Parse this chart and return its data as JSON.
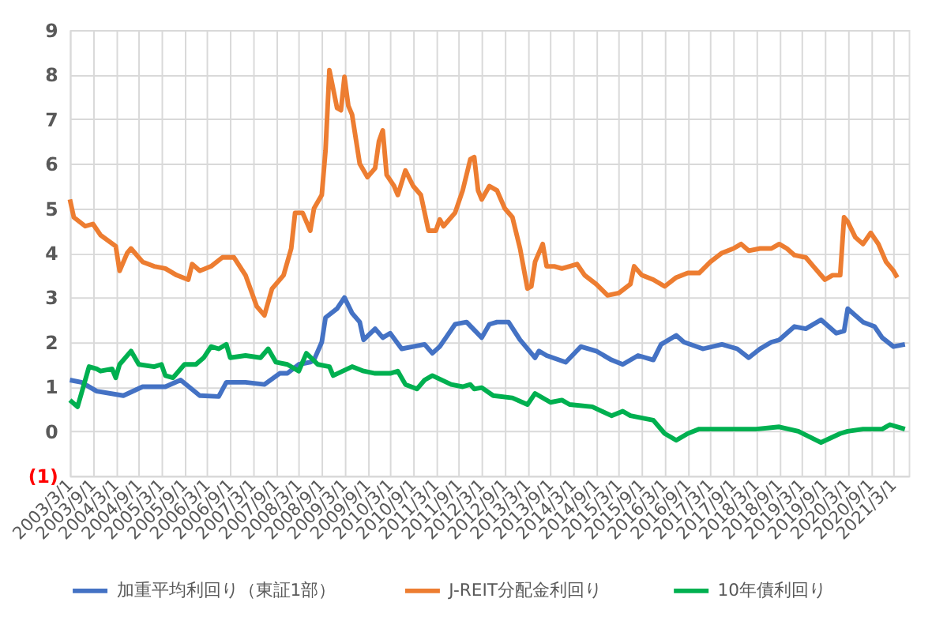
{
  "chart_data": {
    "type": "line",
    "legend": "bottom",
    "grid": true,
    "line_style": "solid",
    "marker": "none",
    "xlim": [
      "2003-03-01",
      "2021-07-01"
    ],
    "xticks": [
      {
        "value": "2003-03-01",
        "label": "2003/3/1"
      },
      {
        "value": "2003-09-01",
        "label": "2003/9/1"
      },
      {
        "value": "2004-03-01",
        "label": "2004/3/1"
      },
      {
        "value": "2004-09-01",
        "label": "2004/9/1"
      },
      {
        "value": "2005-03-01",
        "label": "2005/3/1"
      },
      {
        "value": "2005-09-01",
        "label": "2005/9/1"
      },
      {
        "value": "2006-03-01",
        "label": "2006/3/1"
      },
      {
        "value": "2006-09-01",
        "label": "2006/9/1"
      },
      {
        "value": "2007-03-01",
        "label": "2007/3/1"
      },
      {
        "value": "2007-09-01",
        "label": "2007/9/1"
      },
      {
        "value": "2008-03-01",
        "label": "2008/3/1"
      },
      {
        "value": "2008-09-01",
        "label": "2008/9/1"
      },
      {
        "value": "2009-03-01",
        "label": "2009/3/1"
      },
      {
        "value": "2009-09-01",
        "label": "2009/9/1"
      },
      {
        "value": "2010-03-01",
        "label": "2010/3/1"
      },
      {
        "value": "2010-09-01",
        "label": "2010/9/1"
      },
      {
        "value": "2011-03-01",
        "label": "2011/3/1"
      },
      {
        "value": "2011-09-01",
        "label": "2011/9/1"
      },
      {
        "value": "2012-03-01",
        "label": "2012/3/1"
      },
      {
        "value": "2012-09-01",
        "label": "2012/9/1"
      },
      {
        "value": "2013-03-01",
        "label": "2013/3/1"
      },
      {
        "value": "2013-09-01",
        "label": "2013/9/1"
      },
      {
        "value": "2014-03-01",
        "label": "2014/3/1"
      },
      {
        "value": "2014-09-01",
        "label": "2014/9/1"
      },
      {
        "value": "2015-03-01",
        "label": "2015/3/1"
      },
      {
        "value": "2015-09-01",
        "label": "2015/9/1"
      },
      {
        "value": "2016-03-01",
        "label": "2016/3/1"
      },
      {
        "value": "2016-09-01",
        "label": "2016/9/1"
      },
      {
        "value": "2017-03-01",
        "label": "2017/3/1"
      },
      {
        "value": "2017-09-01",
        "label": "2017/9/1"
      },
      {
        "value": "2018-03-01",
        "label": "2018/3/1"
      },
      {
        "value": "2018-09-01",
        "label": "2018/9/1"
      },
      {
        "value": "2019-03-01",
        "label": "2019/3/1"
      },
      {
        "value": "2019-09-01",
        "label": "2019/9/1"
      },
      {
        "value": "2020-03-01",
        "label": "2020/3/1"
      },
      {
        "value": "2020-09-01",
        "label": "2020/9/1"
      },
      {
        "value": "2021-03-01",
        "label": "2021/3/1"
      }
    ],
    "ylim": [
      -1,
      9
    ],
    "yticks": [
      {
        "value": -1,
        "label": "(1)"
      },
      0,
      1,
      2,
      3,
      4,
      5,
      6,
      7,
      8,
      9
    ],
    "series": [
      {
        "name": "加重平均利回り（東証1部）",
        "color": "#4472c4",
        "x": [
          "2003-03",
          "2003-06",
          "2003-10",
          "2004-05",
          "2004-10",
          "2005-04",
          "2005-08",
          "2006-01",
          "2006-06",
          "2006-08",
          "2007-01",
          "2007-06",
          "2007-10",
          "2007-12",
          "2008-03",
          "2008-06",
          "2008-07",
          "2008-09",
          "2008-10",
          "2009-01",
          "2009-03",
          "2009-05",
          "2009-07",
          "2009-08",
          "2009-11",
          "2010-01",
          "2010-03",
          "2010-06",
          "2010-09",
          "2010-12",
          "2011-02",
          "2011-04",
          "2011-06",
          "2011-08",
          "2011-11",
          "2012-03",
          "2012-05",
          "2012-07",
          "2012-10",
          "2013-01",
          "2013-05",
          "2013-06",
          "2013-08",
          "2014-01",
          "2014-05",
          "2014-09",
          "2015-01",
          "2015-04",
          "2015-08",
          "2015-12",
          "2016-02",
          "2016-06",
          "2016-08",
          "2017-01",
          "2017-06",
          "2017-10",
          "2018-01",
          "2018-04",
          "2018-07",
          "2018-09",
          "2019-01",
          "2019-04",
          "2019-08",
          "2019-12",
          "2020-02",
          "2020-03",
          "2020-07",
          "2020-10",
          "2020-12",
          "2021-03",
          "2021-06"
        ],
        "values": [
          1.15,
          1.1,
          0.9,
          0.8,
          1.0,
          1.0,
          1.15,
          0.8,
          0.78,
          1.1,
          1.1,
          1.05,
          1.3,
          1.3,
          1.5,
          1.55,
          1.6,
          2.0,
          2.55,
          2.75,
          3.0,
          2.65,
          2.45,
          2.05,
          2.3,
          2.1,
          2.2,
          1.85,
          1.9,
          1.95,
          1.75,
          1.9,
          2.15,
          2.4,
          2.45,
          2.1,
          2.4,
          2.45,
          2.45,
          2.05,
          1.65,
          1.8,
          1.7,
          1.55,
          1.9,
          1.8,
          1.6,
          1.5,
          1.7,
          1.6,
          1.95,
          2.15,
          2.0,
          1.85,
          1.95,
          1.85,
          1.65,
          1.85,
          2.0,
          2.05,
          2.35,
          2.3,
          2.5,
          2.2,
          2.25,
          2.75,
          2.45,
          2.35,
          2.1,
          1.9,
          1.95
        ]
      },
      {
        "name": "J-REIT分配金利回り",
        "color": "#ed7d31",
        "x": [
          "2003-03",
          "2003-04",
          "2003-07",
          "2003-09",
          "2003-11",
          "2004-03",
          "2004-04",
          "2004-06",
          "2004-07",
          "2004-10",
          "2005-01",
          "2005-04",
          "2005-07",
          "2005-10",
          "2005-11",
          "2006-01",
          "2006-04",
          "2006-07",
          "2006-10",
          "2007-01",
          "2007-04",
          "2007-06",
          "2007-08",
          "2007-11",
          "2008-01",
          "2008-02",
          "2008-04",
          "2008-06",
          "2008-07",
          "2008-09",
          "2008-10",
          "2008-11",
          "2009-01",
          "2009-02",
          "2009-03",
          "2009-04",
          "2009-05",
          "2009-07",
          "2009-09",
          "2009-11",
          "2009-12",
          "2010-01",
          "2010-02",
          "2010-04",
          "2010-05",
          "2010-07",
          "2010-09",
          "2010-11",
          "2011-01",
          "2011-03",
          "2011-04",
          "2011-05",
          "2011-08",
          "2011-10",
          "2011-12",
          "2012-01",
          "2012-02",
          "2012-03",
          "2012-05",
          "2012-07",
          "2012-09",
          "2012-11",
          "2013-01",
          "2013-03",
          "2013-04",
          "2013-05",
          "2013-07",
          "2013-08",
          "2013-10",
          "2013-12",
          "2014-02",
          "2014-04",
          "2014-06",
          "2014-09",
          "2014-12",
          "2015-03",
          "2015-06",
          "2015-07",
          "2015-09",
          "2015-12",
          "2016-03",
          "2016-06",
          "2016-09",
          "2016-12",
          "2017-03",
          "2017-06",
          "2017-09",
          "2017-11",
          "2018-01",
          "2018-04",
          "2018-07",
          "2018-09",
          "2018-11",
          "2019-01",
          "2019-04",
          "2019-06",
          "2019-09",
          "2019-11",
          "2020-01",
          "2020-02",
          "2020-03",
          "2020-05",
          "2020-07",
          "2020-09",
          "2020-11",
          "2021-01",
          "2021-03",
          "2021-04"
        ],
        "values": [
          5.2,
          4.8,
          4.6,
          4.65,
          4.4,
          4.15,
          3.6,
          4.0,
          4.1,
          3.8,
          3.7,
          3.65,
          3.5,
          3.4,
          3.75,
          3.6,
          3.7,
          3.9,
          3.9,
          3.5,
          2.8,
          2.6,
          3.2,
          3.5,
          4.1,
          4.9,
          4.9,
          4.5,
          5.0,
          5.3,
          6.3,
          8.1,
          7.25,
          7.2,
          7.95,
          7.3,
          7.1,
          6.0,
          5.7,
          5.9,
          6.5,
          6.75,
          5.75,
          5.5,
          5.3,
          5.85,
          5.5,
          5.3,
          4.5,
          4.5,
          4.75,
          4.6,
          4.9,
          5.4,
          6.1,
          6.15,
          5.4,
          5.2,
          5.5,
          5.4,
          5.0,
          4.8,
          4.1,
          3.2,
          3.25,
          3.8,
          4.2,
          3.7,
          3.7,
          3.65,
          3.7,
          3.75,
          3.5,
          3.3,
          3.05,
          3.1,
          3.3,
          3.7,
          3.5,
          3.4,
          3.25,
          3.45,
          3.55,
          3.55,
          3.8,
          4.0,
          4.1,
          4.2,
          4.05,
          4.1,
          4.1,
          4.2,
          4.1,
          3.95,
          3.9,
          3.7,
          3.4,
          3.5,
          3.5,
          4.8,
          4.7,
          4.35,
          4.2,
          4.45,
          4.2,
          3.8,
          3.6,
          3.45
        ]
      },
      {
        "name": "10年債利回り",
        "color": "#00b050",
        "x": [
          "2003-03",
          "2003-05",
          "2003-06",
          "2003-08",
          "2003-10",
          "2003-11",
          "2004-02",
          "2004-03",
          "2004-04",
          "2004-07",
          "2004-09",
          "2005-01",
          "2005-03",
          "2005-04",
          "2005-06",
          "2005-09",
          "2005-12",
          "2006-02",
          "2006-04",
          "2006-06",
          "2006-08",
          "2006-09",
          "2007-01",
          "2007-05",
          "2007-07",
          "2007-09",
          "2007-12",
          "2008-03",
          "2008-05",
          "2008-08",
          "2008-11",
          "2008-12",
          "2009-05",
          "2009-08",
          "2009-11",
          "2010-03",
          "2010-05",
          "2010-07",
          "2010-10",
          "2010-12",
          "2011-02",
          "2011-07",
          "2011-10",
          "2011-12",
          "2012-01",
          "2012-03",
          "2012-06",
          "2012-11",
          "2013-03",
          "2013-05",
          "2013-09",
          "2013-12",
          "2014-02",
          "2014-08",
          "2015-01",
          "2015-04",
          "2015-06",
          "2015-12",
          "2016-03",
          "2016-06",
          "2016-09",
          "2016-12",
          "2017-05",
          "2017-10",
          "2018-03",
          "2018-09",
          "2019-02",
          "2019-08",
          "2020-01",
          "2020-03",
          "2020-07",
          "2020-12",
          "2021-02",
          "2021-06"
        ],
        "values": [
          0.7,
          0.55,
          0.85,
          1.45,
          1.4,
          1.35,
          1.4,
          1.2,
          1.5,
          1.8,
          1.5,
          1.45,
          1.5,
          1.25,
          1.2,
          1.5,
          1.5,
          1.65,
          1.9,
          1.85,
          1.95,
          1.65,
          1.7,
          1.65,
          1.85,
          1.55,
          1.5,
          1.35,
          1.75,
          1.5,
          1.45,
          1.25,
          1.45,
          1.35,
          1.3,
          1.3,
          1.35,
          1.05,
          0.95,
          1.15,
          1.25,
          1.05,
          1.0,
          1.05,
          0.95,
          0.98,
          0.8,
          0.75,
          0.6,
          0.85,
          0.65,
          0.7,
          0.6,
          0.55,
          0.35,
          0.45,
          0.35,
          0.25,
          -0.05,
          -0.2,
          -0.05,
          0.05,
          0.05,
          0.05,
          0.05,
          0.1,
          0.0,
          -0.25,
          -0.05,
          0.0,
          0.05,
          0.05,
          0.15,
          0.05
        ]
      }
    ]
  }
}
